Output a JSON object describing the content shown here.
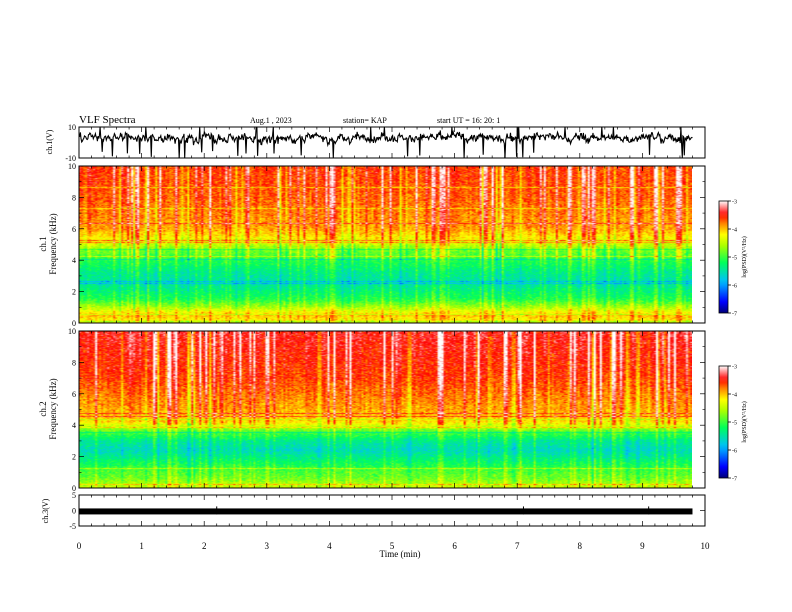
{
  "header": {
    "title": "VLF Spectra",
    "date": "Aug.1 , 2023",
    "station": "station= KAP",
    "start": "start UT = 16: 20: 1"
  },
  "chart_data": [
    {
      "type": "line",
      "name": "ch1-waveform",
      "ylabel": "ch.1(V)",
      "ylim": [
        -10,
        10
      ],
      "yticks": [
        {
          "v": 10,
          "label": "10"
        },
        {
          "v": -10,
          "label": "-10"
        }
      ],
      "xlim": [
        0,
        10
      ],
      "visual_mean": 3,
      "visual_amplitude": 9,
      "extent_x": 9.8
    },
    {
      "type": "heatmap",
      "name": "ch1-spectrogram",
      "ylabel_top": "ch.1",
      "ylabel": "Frequency (kHz)",
      "ylim": [
        0,
        10
      ],
      "yticks": [
        {
          "v": 0,
          "label": "0"
        },
        {
          "v": 2,
          "label": "2"
        },
        {
          "v": 4,
          "label": "4"
        },
        {
          "v": 6,
          "label": "6"
        },
        {
          "v": 8,
          "label": "8"
        },
        {
          "v": 10,
          "label": "10"
        }
      ],
      "xlim": [
        0,
        10
      ],
      "extent_x": 9.8,
      "band_profile": [
        {
          "f": 0.0,
          "level": -4.3
        },
        {
          "f": 0.5,
          "level": -4.0
        },
        {
          "f": 1.0,
          "level": -4.6
        },
        {
          "f": 1.5,
          "level": -5.1
        },
        {
          "f": 2.0,
          "level": -5.3
        },
        {
          "f": 2.6,
          "level": -5.5
        },
        {
          "f": 3.2,
          "level": -5.4
        },
        {
          "f": 4.0,
          "level": -5.1
        },
        {
          "f": 4.6,
          "level": -4.8
        },
        {
          "f": 5.2,
          "level": -4.3
        },
        {
          "f": 6.0,
          "level": -3.9
        },
        {
          "f": 8.0,
          "level": -3.7
        },
        {
          "f": 10.0,
          "level": -3.6
        }
      ],
      "colorbar": {
        "range": [
          -7,
          -3
        ],
        "ticks": [
          {
            "v": -3,
            "label": "-3"
          },
          {
            "v": -4,
            "label": "-4"
          },
          {
            "v": -5,
            "label": "-5"
          },
          {
            "v": -6,
            "label": "-6"
          },
          {
            "v": -7,
            "label": "-7"
          }
        ],
        "label": "log(PSD)(V²/Hz)"
      }
    },
    {
      "type": "heatmap",
      "name": "ch2-spectrogram",
      "ylabel_top": "ch.2",
      "ylabel": "Frequency (kHz)",
      "ylim": [
        0,
        10
      ],
      "yticks": [
        {
          "v": 0,
          "label": "0"
        },
        {
          "v": 2,
          "label": "2"
        },
        {
          "v": 4,
          "label": "4"
        },
        {
          "v": 6,
          "label": "6"
        },
        {
          "v": 8,
          "label": "8"
        },
        {
          "v": 10,
          "label": "10"
        }
      ],
      "xlim": [
        0,
        10
      ],
      "extent_x": 9.8,
      "band_profile": [
        {
          "f": 0.0,
          "level": -4.4
        },
        {
          "f": 0.6,
          "level": -4.8
        },
        {
          "f": 1.2,
          "level": -5.0
        },
        {
          "f": 1.8,
          "level": -5.3
        },
        {
          "f": 2.4,
          "level": -5.6
        },
        {
          "f": 3.0,
          "level": -5.4
        },
        {
          "f": 3.6,
          "level": -4.9
        },
        {
          "f": 4.2,
          "level": -4.1
        },
        {
          "f": 5.0,
          "level": -3.9
        },
        {
          "f": 7.0,
          "level": -3.6
        },
        {
          "f": 10.0,
          "level": -3.4
        }
      ],
      "colorbar": {
        "range": [
          -7,
          -3
        ],
        "ticks": [
          {
            "v": -3,
            "label": "-3"
          },
          {
            "v": -4,
            "label": "-4"
          },
          {
            "v": -5,
            "label": "-5"
          },
          {
            "v": -6,
            "label": "-6"
          },
          {
            "v": -7,
            "label": "-7"
          }
        ],
        "label": "log(PSD)(V²/Hz)"
      }
    },
    {
      "type": "line",
      "name": "ch3-waveform",
      "ylabel": "ch.3(V)",
      "ylim": [
        -5,
        5
      ],
      "yticks": [
        {
          "v": 5,
          "label": "5"
        },
        {
          "v": 0,
          "label": "0"
        },
        {
          "v": -5,
          "label": "-5"
        }
      ],
      "xlim": [
        0,
        10
      ],
      "visual_mean": -0.3,
      "visual_amplitude": 0.6,
      "extent_x": 9.8,
      "xlabel": "Time (min)",
      "xticks": [
        {
          "v": 0,
          "label": "0"
        },
        {
          "v": 1,
          "label": "1"
        },
        {
          "v": 2,
          "label": "2"
        },
        {
          "v": 3,
          "label": "3"
        },
        {
          "v": 4,
          "label": "4"
        },
        {
          "v": 5,
          "label": "5"
        },
        {
          "v": 6,
          "label": "6"
        },
        {
          "v": 7,
          "label": "7"
        },
        {
          "v": 8,
          "label": "8"
        },
        {
          "v": 9,
          "label": "9"
        },
        {
          "v": 10,
          "label": "10"
        }
      ]
    }
  ]
}
